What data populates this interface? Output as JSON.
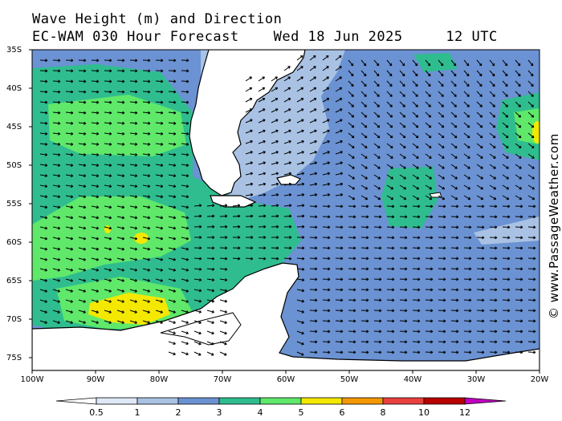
{
  "header": {
    "title_line1": "Wave Height (m) and Direction",
    "model": "EC-WAM 030 Hour Forecast",
    "date": "Wed 18 Jun 2025",
    "time": "12 UTC"
  },
  "credit": "© www.PassageWeather.com",
  "map": {
    "lat_labels": [
      "35S",
      "40S",
      "45S",
      "50S",
      "55S",
      "60S",
      "65S",
      "70S",
      "75S"
    ],
    "lon_labels": [
      "100W",
      "90W",
      "80W",
      "70W",
      "60W",
      "50W",
      "40W",
      "30W",
      "20W"
    ],
    "lat_range": [
      -76,
      -35
    ],
    "lon_range": [
      -100,
      -20
    ],
    "prevailing_wave_direction": "westerly (from west toward east)"
  },
  "colorbar": {
    "labels": [
      "0.5",
      "1",
      "2",
      "3",
      "4",
      "5",
      "6",
      "8",
      "10",
      "12"
    ],
    "colors": [
      "#dfe8f6",
      "#a9c2e4",
      "#6b92d2",
      "#2fbd8f",
      "#5fe86a",
      "#f4e800",
      "#f59800",
      "#ea4040",
      "#b80000",
      "#c000c0"
    ]
  },
  "colors": {
    "land": "#ffffff",
    "coast": "#000000",
    "h_0_5_1": "#dfe8f6",
    "h_1_2": "#a9c2e4",
    "h_2_3": "#6b92d2",
    "h_3_4": "#2fbd8f",
    "h_4_5": "#5fe86a",
    "h_5_6": "#f4e800"
  }
}
